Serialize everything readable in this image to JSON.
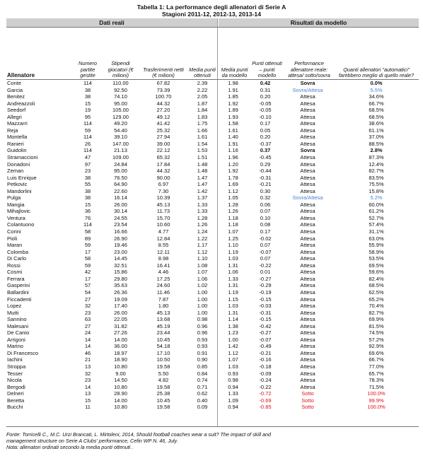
{
  "title_line1": "Tabella 1: La performance degli allenatori di Serie A",
  "title_line2": "Stagioni 2011-12, 2012-13, 2013-14",
  "section_left": "Dati reali",
  "section_right": "Risultati da modello",
  "headers": {
    "coach": "Allenatore",
    "games": "Numero partite gestite",
    "salaries": "Stipendi giocatori (€ milioni)",
    "transfers": "Trasferimenti netti (€ milioni)",
    "avg_points": "Media punti ottenuti",
    "model_avg": "Media punti da modello",
    "delta": "Punti ottenuti – punti modello",
    "performance": "Performance allenatore reale: attesa/ sotto/sovra",
    "how_many": "Quanti allenatori \"automatici\" farebbero meglio di quello reale?"
  },
  "colors": {
    "blue": "#4a7fd4",
    "red": "#e0101a",
    "band": "#cfcfcf"
  },
  "rows": [
    [
      "Conte",
      "114",
      "110.00",
      "67.82",
      "2.39",
      "1.98",
      "0.42",
      "Sovra",
      "0.0%",
      "bold"
    ],
    [
      "Garcia",
      "38",
      "92.50",
      "73.39",
      "2.22",
      "1.91",
      "0.31",
      "Sovra/Attesa",
      "5.5%",
      "blue"
    ],
    [
      "Benitez",
      "38",
      "74.10",
      "100.70",
      "2.05",
      "1.85",
      "0.20",
      "Attesa",
      "34.6%",
      ""
    ],
    [
      "Andreazzoli",
      "15",
      "95.00",
      "44.32",
      "1.87",
      "1.92",
      "-0.05",
      "Attesa",
      "66.7%",
      ""
    ],
    [
      "Seedorf",
      "19",
      "105.00",
      "27.20",
      "1.84",
      "1.89",
      "-0.05",
      "Attesa",
      "68.5%",
      ""
    ],
    [
      "Allegri",
      "95",
      "129.00",
      "49.12",
      "1.83",
      "1.93",
      "-0.10",
      "Attesa",
      "68.5%",
      ""
    ],
    [
      "Mazzarri",
      "114",
      "49.20",
      "41.42",
      "1.75",
      "1.58",
      "0.17",
      "Attesa",
      "38.6%",
      ""
    ],
    [
      "Reja",
      "59",
      "54.40",
      "25.32",
      "1.66",
      "1.61",
      "0.05",
      "Attesa",
      "61.1%",
      ""
    ],
    [
      "Montella",
      "114",
      "39.10",
      "27.94",
      "1.61",
      "1.40",
      "0.20",
      "Attesa",
      "37.0%",
      ""
    ],
    [
      "Ranieri",
      "26",
      "147.00",
      "39.00",
      "1.54",
      "1.91",
      "-0.37",
      "Attesa",
      "88.5%",
      ""
    ],
    [
      "Guidolin",
      "114",
      "21.13",
      "22.12",
      "1.53",
      "1.16",
      "0.37",
      "Sovra",
      "2.8%",
      "bold"
    ],
    [
      "Stramaccioni",
      "47",
      "109.00",
      "65.32",
      "1.51",
      "1.96",
      "-0.45",
      "Attesa",
      "87.3%",
      ""
    ],
    [
      "Donadoni",
      "97",
      "24.84",
      "17.84",
      "1.48",
      "1.20",
      "0.29",
      "Attesa",
      "12.4%",
      ""
    ],
    [
      "Zeman",
      "23",
      "95.00",
      "44.32",
      "1.48",
      "1.92",
      "-0.44",
      "Attesa",
      "82.7%",
      ""
    ],
    [
      "Luis Enrique",
      "38",
      "76.50",
      "90.00",
      "1.47",
      "1.78",
      "-0.31",
      "Attesa",
      "83.5%",
      ""
    ],
    [
      "Petkovic",
      "55",
      "64.90",
      "6.97",
      "1.47",
      "1.69",
      "-0.21",
      "Attesa",
      "75.5%",
      ""
    ],
    [
      "Mandorlini",
      "38",
      "22.60",
      "7.30",
      "1.42",
      "1.12",
      "0.30",
      "Attesa",
      "15.8%",
      ""
    ],
    [
      "Pulga",
      "38",
      "16.14",
      "10.39",
      "1.37",
      "1.05",
      "0.32",
      "Sovra/Attesa",
      "5.2%",
      "blue"
    ],
    [
      "Mangia",
      "15",
      "26.00",
      "45.13",
      "1.33",
      "1.28",
      "0.06",
      "Attesa",
      "60.0%",
      ""
    ],
    [
      "Mihajlovic",
      "36",
      "30.14",
      "11.73",
      "1.33",
      "1.26",
      "0.07",
      "Attesa",
      "61.2%",
      ""
    ],
    [
      "Ventura",
      "76",
      "24.55",
      "15.70",
      "1.28",
      "1.18",
      "0.10",
      "Attesa",
      "52.7%",
      ""
    ],
    [
      "Colantuono",
      "114",
      "23.54",
      "10.60",
      "1.26",
      "1.18",
      "0.08",
      "Attesa",
      "57.4%",
      ""
    ],
    [
      "Corini",
      "58",
      "16.66",
      "4.77",
      "1.24",
      "1.07",
      "0.17",
      "Attesa",
      "31.1%",
      ""
    ],
    [
      "Pioli",
      "89",
      "26.90",
      "12.84",
      "1.22",
      "1.25",
      "-0.02",
      "Attesa",
      "63.0%",
      ""
    ],
    [
      "Maran",
      "59",
      "19.46",
      "8.55",
      "1.17",
      "1.10",
      "0.07",
      "Attesa",
      "55.9%",
      ""
    ],
    [
      "Colomba",
      "17",
      "23.00",
      "12.11",
      "1.12",
      "1.19",
      "-0.07",
      "Attesa",
      "58.9%",
      ""
    ],
    [
      "Di Carlo",
      "58",
      "14.45",
      "8.98",
      "1.10",
      "1.03",
      "0.07",
      "Attesa",
      "53.5%",
      ""
    ],
    [
      "Rossi",
      "59",
      "32.51",
      "16.41",
      "1.08",
      "1.31",
      "-0.22",
      "Attesa",
      "69.5%",
      ""
    ],
    [
      "Cosmi",
      "42",
      "15.86",
      "4.46",
      "1.07",
      "1.06",
      "0.01",
      "Attesa",
      "59.6%",
      ""
    ],
    [
      "Ferrara",
      "17",
      "29.80",
      "17.25",
      "1.06",
      "1.33",
      "-0.27",
      "Attesa",
      "82.4%",
      ""
    ],
    [
      "Gasperini",
      "57",
      "35.63",
      "24.60",
      "1.02",
      "1.31",
      "-0.29",
      "Attesa",
      "68.5%",
      ""
    ],
    [
      "Ballardini",
      "54",
      "26.36",
      "11.46",
      "1.00",
      "1.19",
      "-0.19",
      "Attesa",
      "62.5%",
      ""
    ],
    [
      "Ficcadenti",
      "27",
      "19.09",
      "7.87",
      "1.00",
      "1.15",
      "-0.15",
      "Attesa",
      "65.2%",
      ""
    ],
    [
      "Lopez",
      "32",
      "17.40",
      "1.80",
      "1.00",
      "1.03",
      "-0.03",
      "Attesa",
      "70.4%",
      ""
    ],
    [
      "Mutti",
      "23",
      "26.00",
      "45.13",
      "1.00",
      "1.31",
      "-0.31",
      "Attesa",
      "82.7%",
      ""
    ],
    [
      "Sannino",
      "63",
      "22.05",
      "13.68",
      "0.98",
      "1.14",
      "-0.15",
      "Attesa",
      "69.9%",
      ""
    ],
    [
      "Malesani",
      "27",
      "31.82",
      "45.19",
      "0.96",
      "1.38",
      "-0.42",
      "Attesa",
      "81.5%",
      ""
    ],
    [
      "De Canio",
      "24",
      "27.26",
      "23.44",
      "0.96",
      "1.23",
      "-0.27",
      "Attesa",
      "74.5%",
      ""
    ],
    [
      "Arrigoni",
      "14",
      "14.00",
      "10.45",
      "0.93",
      "1.00",
      "-0.07",
      "Attesa",
      "57.2%",
      ""
    ],
    [
      "Marino",
      "14",
      "36.00",
      "54.18",
      "0.93",
      "1.42",
      "-0.49",
      "Attesa",
      "92.9%",
      ""
    ],
    [
      "Di Francesco",
      "46",
      "18.97",
      "17.10",
      "0.91",
      "1.12",
      "-0.21",
      "Attesa",
      "69.6%",
      ""
    ],
    [
      "Iachini",
      "21",
      "18.90",
      "10.50",
      "0.90",
      "1.07",
      "-0.16",
      "Attesa",
      "66.7%",
      ""
    ],
    [
      "Stroppa",
      "13",
      "10.80",
      "19.58",
      "0.85",
      "1.03",
      "-0.18",
      "Attesa",
      "77.0%",
      ""
    ],
    [
      "Tesser",
      "32",
      "9.00",
      "5.50",
      "0.84",
      "0.93",
      "-0.09",
      "Attesa",
      "65.7%",
      ""
    ],
    [
      "Nicola",
      "23",
      "14.50",
      "4.82",
      "0.74",
      "0.98",
      "-0.24",
      "Attesa",
      "78.3%",
      ""
    ],
    [
      "Bergodi",
      "14",
      "10.80",
      "19.58",
      "0.71",
      "0.94",
      "-0.22",
      "Attesa",
      "71.5%",
      ""
    ],
    [
      "Delneri",
      "13",
      "28.90",
      "25.38",
      "0.62",
      "1.33",
      "-0.72",
      "Sotto",
      "100.0%",
      "red"
    ],
    [
      "Beretta",
      "15",
      "14.00",
      "10.45",
      "0.40",
      "1.09",
      "-0.69",
      "Sotto",
      "99.9%",
      "red"
    ],
    [
      "Bucchi",
      "11",
      "10.80",
      "19.58",
      "0.09",
      "0.94",
      "-0.85",
      "Sotto",
      "100.0%",
      "red"
    ]
  ],
  "footer_line1": "Fonte: Torricelli C., M.C. Urzi Brancati, L. Mirtoleni, 2014, Should football coaches wear a suit? The impact of skill and",
  "footer_line2": "management structure on Serie A Clubs' performance, Cefin WP N. 46, July.",
  "footer_line3": "Nota: allenatori ordinati secondo la media punti ottenuti ."
}
